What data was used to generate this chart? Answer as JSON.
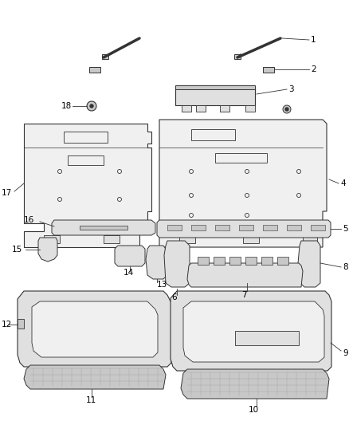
{
  "background_color": "#ffffff",
  "line_color": "#333333",
  "label_color": "#000000",
  "figure_width": 4.38,
  "figure_height": 5.33,
  "dpi": 100,
  "label_fontsize": 7.5
}
